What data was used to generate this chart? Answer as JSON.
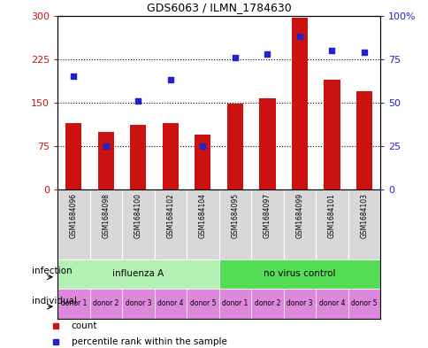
{
  "title": "GDS6063 / ILMN_1784630",
  "samples": [
    "GSM1684096",
    "GSM1684098",
    "GSM1684100",
    "GSM1684102",
    "GSM1684104",
    "GSM1684095",
    "GSM1684097",
    "GSM1684099",
    "GSM1684101",
    "GSM1684103"
  ],
  "counts": [
    115,
    100,
    112,
    115,
    95,
    148,
    157,
    297,
    190,
    170
  ],
  "percentiles": [
    65,
    25,
    51,
    63,
    25,
    76,
    78,
    88,
    80,
    79
  ],
  "infection_groups": [
    {
      "label": "influenza A",
      "start": 0,
      "end": 5,
      "color": "#b3f0b3"
    },
    {
      "label": "no virus control",
      "start": 5,
      "end": 10,
      "color": "#55dd55"
    }
  ],
  "individual_labels": [
    "donor 1",
    "donor 2",
    "donor 3",
    "donor 4",
    "donor 5",
    "donor 1",
    "donor 2",
    "donor 3",
    "donor 4",
    "donor 5"
  ],
  "individual_color": "#dd88dd",
  "bar_color": "#cc1111",
  "dot_color": "#2222cc",
  "left_axis_color": "#cc1111",
  "right_axis_color": "#2222cc",
  "ylim_left": [
    0,
    300
  ],
  "ylim_right": [
    0,
    100
  ],
  "yticks_left": [
    0,
    75,
    150,
    225,
    300
  ],
  "ytick_labels_left": [
    "0",
    "75",
    "150",
    "225",
    "300"
  ],
  "yticks_right": [
    0,
    25,
    50,
    75,
    100
  ],
  "ytick_labels_right": [
    "0",
    "25",
    "50",
    "75",
    "100%"
  ],
  "hlines": [
    75,
    150,
    225
  ],
  "legend_items": [
    {
      "label": "count",
      "color": "#cc1111"
    },
    {
      "label": "percentile rank within the sample",
      "color": "#2222cc"
    }
  ],
  "infection_label": "infection",
  "individual_label": "individual",
  "sample_bg_color": "#d8d8d8"
}
